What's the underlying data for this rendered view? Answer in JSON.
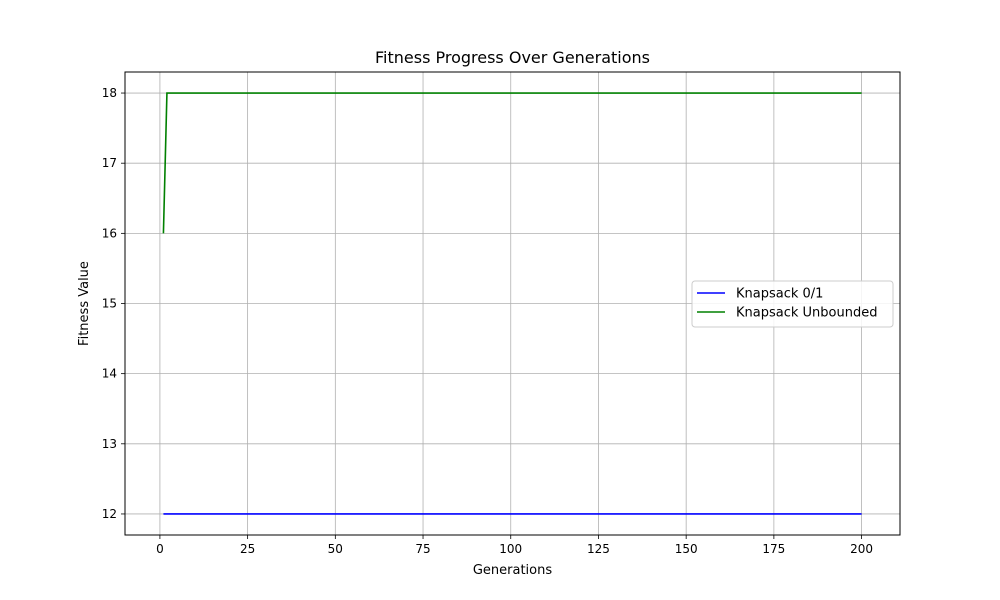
{
  "chart_data": {
    "type": "line",
    "title": "Fitness Progress Over Generations",
    "xlabel": "Generations",
    "ylabel": "Fitness Value",
    "xlim": [
      -9.95,
      210.95
    ],
    "ylim": [
      11.7,
      18.3
    ],
    "xticks": [
      0,
      25,
      50,
      75,
      100,
      125,
      150,
      175,
      200
    ],
    "yticks": [
      12,
      13,
      14,
      15,
      16,
      17,
      18
    ],
    "grid": true,
    "legend_position": "center-right",
    "series": [
      {
        "name": "Knapsack 0/1",
        "color": "#0000ff",
        "x": [
          1,
          200
        ],
        "y": [
          12,
          12
        ]
      },
      {
        "name": "Knapsack Unbounded",
        "color": "#008000",
        "x": [
          1,
          2,
          200
        ],
        "y": [
          16,
          18,
          18
        ]
      }
    ]
  }
}
